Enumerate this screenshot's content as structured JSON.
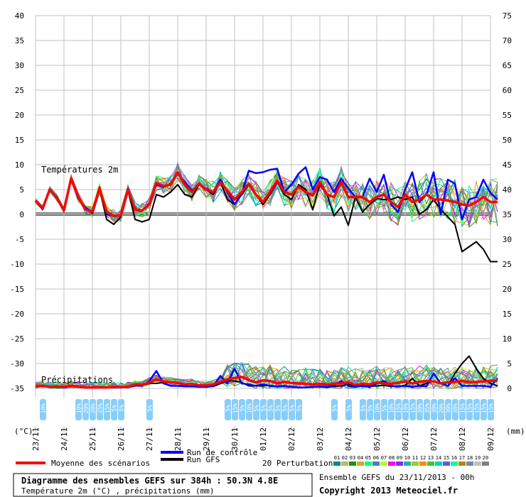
{
  "chart_data": {
    "type": "line",
    "temp_axis": {
      "ticks": [
        40,
        35,
        30,
        25,
        20,
        15,
        10,
        5,
        0,
        -5,
        -10,
        -15,
        -20,
        -25,
        -30,
        -35
      ],
      "range": [
        -35,
        40
      ],
      "unit_label": "(°C)"
    },
    "precip_axis": {
      "ticks": [
        75,
        70,
        65,
        60,
        55,
        50,
        45,
        40,
        35,
        30,
        25,
        20,
        15,
        10,
        5,
        0
      ],
      "range": [
        0,
        75
      ],
      "unit_label": "(mm)"
    },
    "dates": [
      "23/11",
      "24/11",
      "25/11",
      "26/11",
      "27/11",
      "28/11",
      "29/11",
      "30/11",
      "01/12",
      "02/12",
      "03/12",
      "04/12",
      "05/12",
      "06/12",
      "07/12",
      "08/12",
      "09/12"
    ],
    "x_step_hours": 6,
    "panel_labels": {
      "temperature": "Températures 2m",
      "precipitation": "Précipitations"
    },
    "snow_labels": [
      {
        "h": 6,
        "pct": "10%"
      },
      {
        "h": 36,
        "pct": "10%"
      },
      {
        "h": 42,
        "pct": "20%"
      },
      {
        "h": 48,
        "pct": "20%"
      },
      {
        "h": 54,
        "pct": "25%"
      },
      {
        "h": 60,
        "pct": "15%"
      },
      {
        "h": 66,
        "pct": "5%"
      },
      {
        "h": 72,
        "pct": "5%"
      },
      {
        "h": 96,
        "pct": "5%"
      },
      {
        "h": 162,
        "pct": "5%"
      },
      {
        "h": 168,
        "pct": "15%"
      },
      {
        "h": 174,
        "pct": "5%"
      },
      {
        "h": 180,
        "pct": "10%"
      },
      {
        "h": 186,
        "pct": "5%"
      },
      {
        "h": 192,
        "pct": "5%"
      },
      {
        "h": 198,
        "pct": "5%"
      },
      {
        "h": 204,
        "pct": "5%"
      },
      {
        "h": 210,
        "pct": "5%"
      },
      {
        "h": 216,
        "pct": "5%"
      },
      {
        "h": 222,
        "pct": "5%"
      },
      {
        "h": 252,
        "pct": "5%"
      },
      {
        "h": 264,
        "pct": "5%"
      },
      {
        "h": 276,
        "pct": "5%"
      },
      {
        "h": 282,
        "pct": "5%"
      },
      {
        "h": 288,
        "pct": "10%"
      },
      {
        "h": 294,
        "pct": "5%"
      },
      {
        "h": 300,
        "pct": "10%"
      },
      {
        "h": 306,
        "pct": "15%"
      },
      {
        "h": 312,
        "pct": "10%"
      },
      {
        "h": 318,
        "pct": "15%"
      },
      {
        "h": 324,
        "pct": "30%"
      },
      {
        "h": 330,
        "pct": "35%"
      },
      {
        "h": 336,
        "pct": "30%"
      },
      {
        "h": 342,
        "pct": "20%"
      },
      {
        "h": 348,
        "pct": "30%"
      },
      {
        "h": 354,
        "pct": "30%"
      },
      {
        "h": 360,
        "pct": "15%"
      },
      {
        "h": 366,
        "pct": "15%"
      },
      {
        "h": 372,
        "pct": "15%"
      },
      {
        "h": 378,
        "pct": "15%"
      },
      {
        "h": 384,
        "pct": "15%"
      }
    ],
    "series": [
      {
        "name": "Moyenne des scénarios",
        "role": "mean",
        "color": "#ff0000",
        "temp": [
          2.8,
          1.2,
          5,
          3.3,
          0.8,
          7.2,
          3.5,
          1,
          0.5,
          5.3,
          0.5,
          -0.3,
          -0.2,
          5,
          1,
          0.8,
          2,
          6.3,
          5.7,
          6,
          8.5,
          6,
          4.5,
          6.2,
          5,
          4.5,
          6.5,
          4.8,
          3,
          4.5,
          6.2,
          4,
          2.5,
          4.5,
          6.8,
          4.5,
          4,
          5.6,
          4.5,
          3.8,
          6.5,
          4,
          3.5,
          6.5,
          3.5,
          3.5,
          3.5,
          2.5,
          3.5,
          4,
          2.5,
          1.5,
          4,
          2.5,
          3,
          4,
          3,
          3,
          2.8,
          2.5,
          2,
          1.8,
          2.5,
          3.5,
          2.5,
          2.5
        ],
        "precip": [
          0.5,
          0.5,
          0.3,
          0.4,
          0.3,
          0.5,
          0.4,
          0.2,
          0.2,
          0.2,
          0.2,
          0.3,
          0.3,
          0.3,
          0.8,
          0.7,
          1.2,
          1.8,
          1.4,
          1.2,
          1.1,
          0.8,
          0.9,
          0.6,
          0.6,
          0.8,
          1.3,
          1.8,
          2.1,
          2.3,
          1.7,
          1.2,
          1.6,
          1.5,
          1.0,
          1.3,
          1.1,
          1.0,
          0.9,
          0.8,
          0.9,
          0.8,
          0.9,
          1.0,
          1.2,
          0.7,
          0.9,
          0.8,
          1.2,
          1.0,
          0.9,
          1.1,
          1.4,
          1.0,
          1.3,
          1.5,
          1.4,
          1.0,
          1.2,
          1.3,
          1.5,
          1.2,
          1.3,
          1.4,
          1.5,
          1.6
        ]
      },
      {
        "name": "Run de contrôle",
        "role": "control",
        "color": "#0000ff",
        "temp": [
          2.7,
          1,
          5,
          3.5,
          1,
          7.3,
          3.2,
          1.4,
          0.2,
          5.5,
          0,
          -0.3,
          -0.3,
          5.1,
          1,
          0.7,
          2.2,
          6,
          5.5,
          6.2,
          8.2,
          6.5,
          4.8,
          6,
          5.2,
          4.5,
          7,
          4.5,
          2,
          4.2,
          8.8,
          8.3,
          8.5,
          9,
          9.2,
          4.5,
          6,
          8.2,
          9.5,
          5,
          7.5,
          7,
          4.5,
          7.2,
          5.2,
          3.5,
          3.5,
          7.2,
          4.5,
          8,
          2,
          0.5,
          5,
          8.5,
          2.5,
          4,
          8.5,
          0,
          7,
          6.2,
          -1,
          3,
          3.5,
          7,
          4.3,
          3
        ],
        "precip": [
          0.4,
          0.5,
          0.3,
          0.3,
          0.2,
          0.4,
          0.5,
          0.1,
          0.1,
          0.1,
          0.2,
          0.2,
          0.3,
          0.2,
          0.6,
          0.5,
          1.5,
          3.5,
          1,
          0.5,
          0.5,
          0.4,
          0.4,
          0.3,
          0.3,
          0.5,
          2.5,
          1,
          4,
          1,
          0.8,
          0.5,
          0.8,
          0.5,
          0.4,
          0.5,
          0.3,
          0.2,
          0.2,
          0.3,
          0.4,
          0.3,
          0.6,
          1.5,
          0.5,
          0.3,
          0.5,
          0.3,
          1,
          1.5,
          0.5,
          0.4,
          0.5,
          0.3,
          0.5,
          0.4,
          3,
          1,
          0.5,
          2,
          0.5,
          0.5,
          0.5,
          0.5,
          0.3,
          2
        ]
      },
      {
        "name": "Run GFS",
        "role": "gfs",
        "color": "#000000",
        "temp": [
          2.8,
          1.1,
          4.9,
          3.2,
          0.7,
          7.1,
          3.3,
          1.3,
          0.3,
          5.1,
          -1,
          -2,
          -0.5,
          5,
          -1,
          -1.5,
          -1,
          4,
          3.5,
          4.5,
          6,
          4,
          3.5,
          6,
          5,
          4,
          6.5,
          3,
          2,
          4,
          6,
          4,
          2,
          4,
          6.5,
          4,
          3,
          6,
          5,
          1,
          6,
          4,
          -0.3,
          1.5,
          -2.2,
          3.5,
          0.5,
          2,
          3.2,
          3,
          3,
          3.5,
          3,
          3.5,
          0,
          1,
          3,
          1,
          -0.5,
          -2,
          -7.5,
          -6.5,
          -5.5,
          -7,
          -9.5,
          -9.5
        ],
        "precip": [
          0.4,
          0.4,
          0.3,
          0.2,
          0.3,
          0.4,
          0.3,
          0.1,
          0.1,
          0.2,
          0.2,
          0.3,
          0.2,
          0.2,
          0.5,
          0.6,
          1,
          1,
          1.2,
          0.5,
          0.5,
          0.4,
          0.4,
          0.3,
          0.3,
          0.4,
          1,
          1.5,
          1.5,
          1.2,
          0.5,
          0.5,
          0.5,
          0.6,
          0.4,
          0.5,
          0.3,
          0.2,
          0.2,
          0.3,
          0.3,
          0.2,
          0.4,
          0.5,
          0.8,
          0.4,
          0.5,
          0.4,
          0.5,
          0.6,
          0.4,
          0.4,
          0.6,
          2,
          0.5,
          1,
          1.5,
          1,
          0.5,
          3,
          5,
          6.5,
          4,
          2,
          1,
          0.5
        ]
      }
    ],
    "perturbations": {
      "count": 20,
      "labels": [
        "01",
        "02",
        "03",
        "04",
        "05",
        "06",
        "07",
        "08",
        "09",
        "10",
        "11",
        "12",
        "13",
        "14",
        "15",
        "16",
        "17",
        "18",
        "19",
        "20"
      ],
      "colors": [
        "#008b8b",
        "#bdb76b",
        "#228b22",
        "#daa520",
        "#00ff7f",
        "#4682b4",
        "#adff2f",
        "#ff00ff",
        "#8a2be2",
        "#20b2aa",
        "#9acd32",
        "#ff8c00",
        "#32cd32",
        "#00ced1",
        "#6a5acd",
        "#00fa9a",
        "#b8860b",
        "#778899",
        "#c0c0c0",
        "#808080"
      ]
    }
  },
  "legend": {
    "mean": "Moyenne des scénarios",
    "control": "Run de contrôle",
    "gfs": "Run GFS",
    "perturbations": "20 Perturbations"
  },
  "footer": {
    "title": "Diagramme des ensembles GEFS sur 384h : 50.3N 4.8E",
    "subtitle": "Température 2m (°C) , précipitations (mm)",
    "run_info": "Ensemble GEFS du 23/11/2013 - 00h",
    "copyright": "Copyright 2013 Meteociel.fr"
  },
  "colors": {
    "grid": "#c0c0c0",
    "zero_line": "#000000",
    "snow_icon": "#87cefa",
    "snow_text": "#ffffff"
  }
}
